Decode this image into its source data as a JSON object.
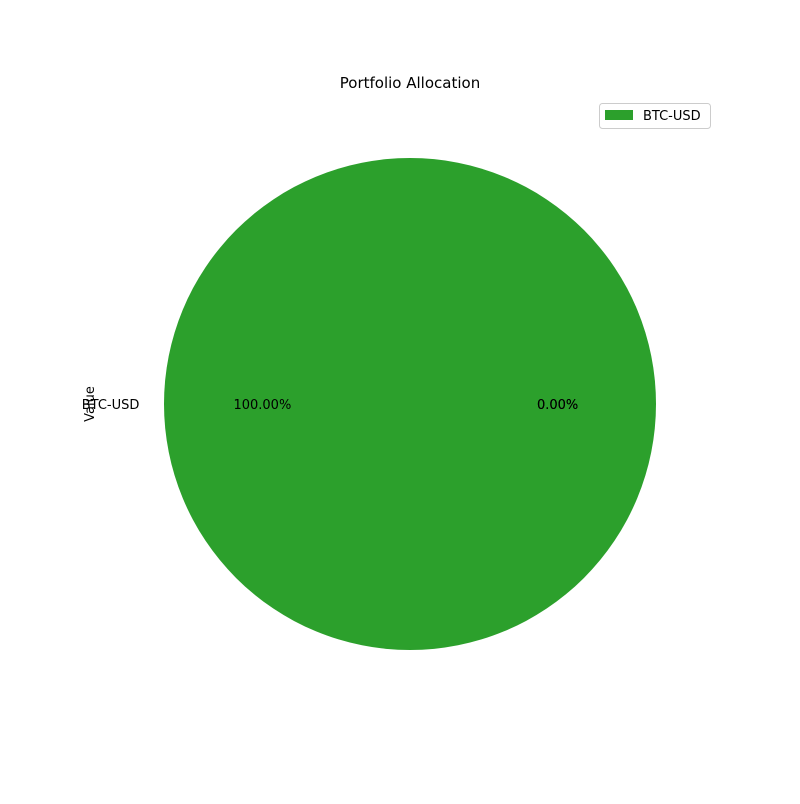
{
  "chart_data": {
    "type": "pie",
    "title": "Portfolio Allocation",
    "ylabel": "Value",
    "legend_position": "top-right",
    "categories": [
      "BTC-USD",
      "",
      ""
    ],
    "values": [
      100,
      0,
      0
    ],
    "pct_labels": [
      "100.00%",
      "0.00%",
      "0.00%"
    ],
    "legend_entries": [
      "BTC-USD"
    ],
    "colors": [
      "#2ca02c",
      "#1f77b4",
      "#ff7f0e"
    ]
  }
}
